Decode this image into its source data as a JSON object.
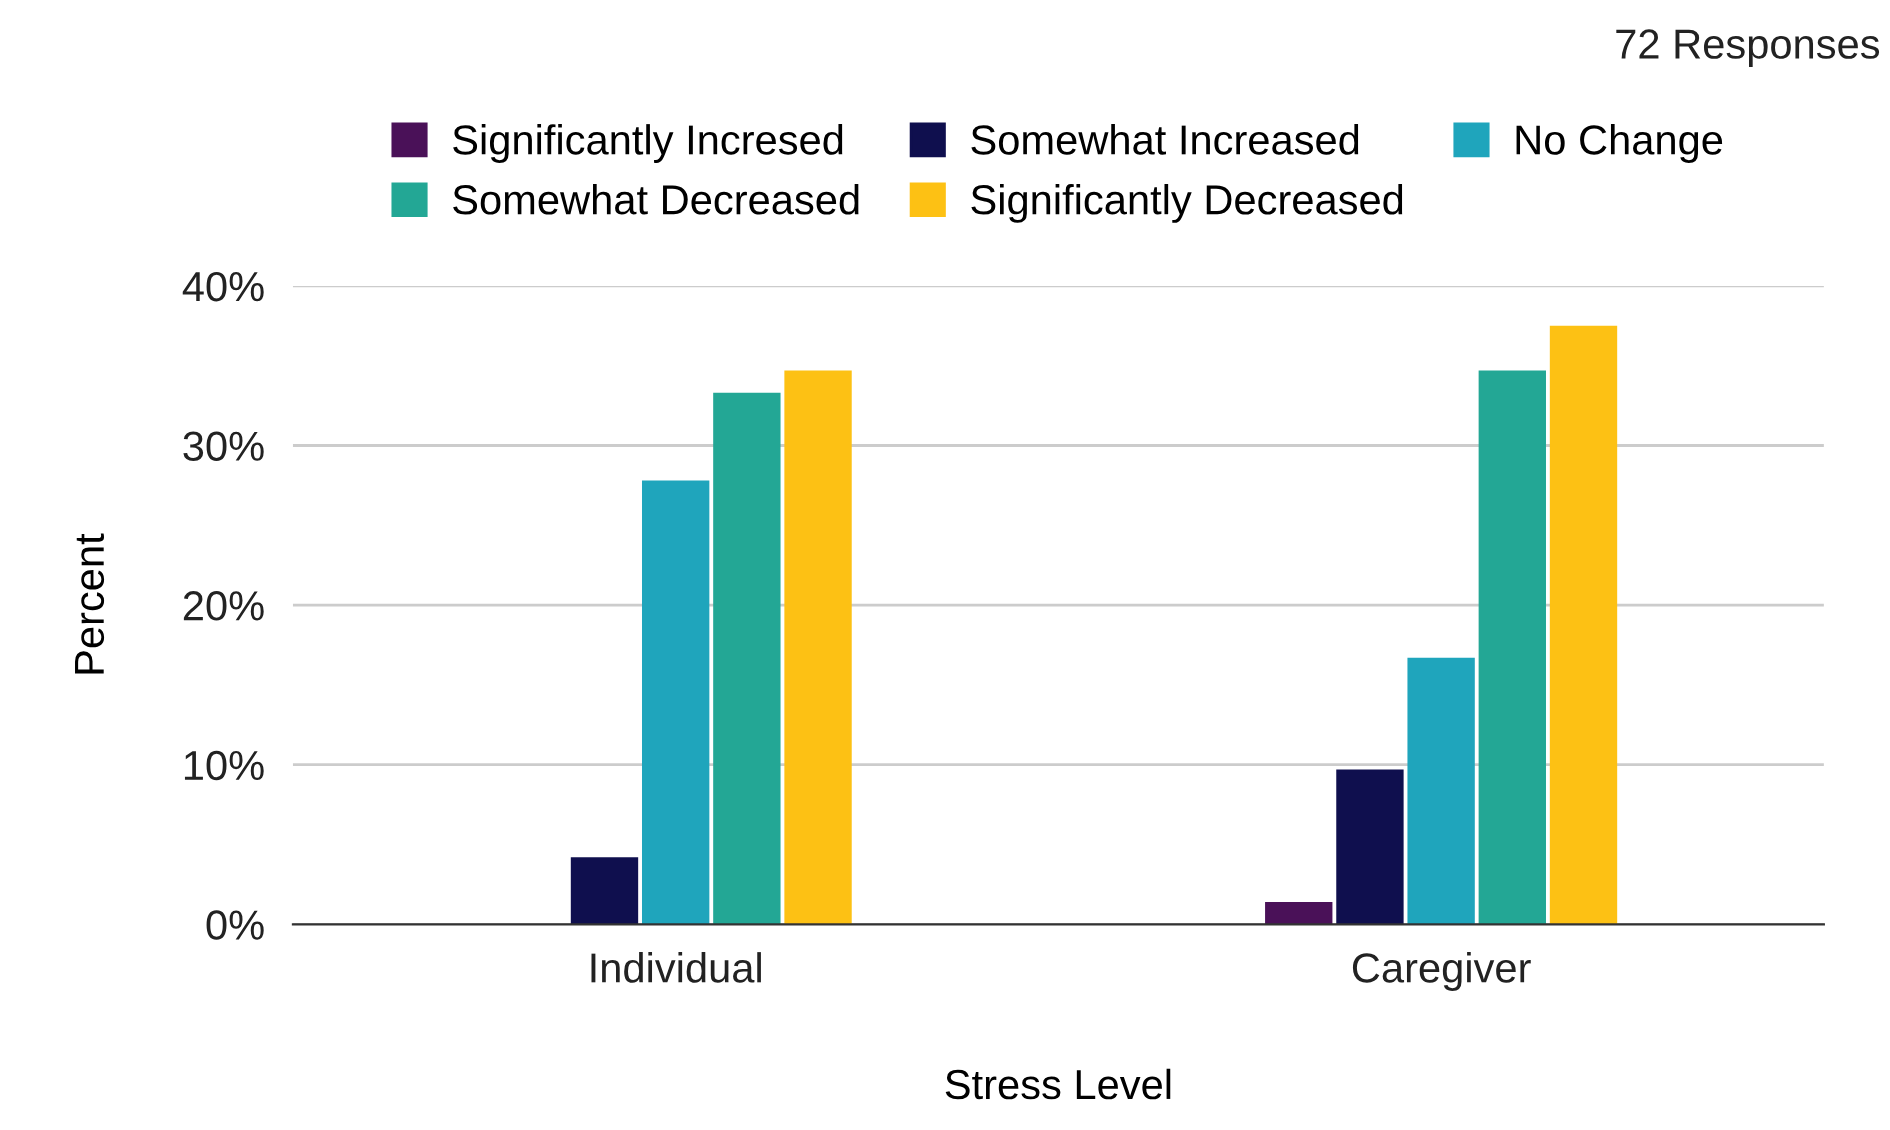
{
  "chart_data": {
    "type": "bar",
    "xlabel": "Stress Level",
    "ylabel": "Percent",
    "annotations": [
      "72 Responses"
    ],
    "categories": [
      "Individual",
      "Caregiver"
    ],
    "series": [
      {
        "name": "Significantly Incresed",
        "color": "#4a1158",
        "values": [
          0,
          1.4
        ]
      },
      {
        "name": "Somewhat Increased",
        "color": "#0f0f4e",
        "values": [
          4.2,
          9.7
        ]
      },
      {
        "name": "No Change",
        "color": "#1fa5bc",
        "values": [
          27.8,
          16.7
        ]
      },
      {
        "name": "Somewhat Decreased",
        "color": "#23a795",
        "values": [
          33.3,
          34.7
        ]
      },
      {
        "name": "Significantly Decreased",
        "color": "#fdc114",
        "values": [
          34.7,
          37.5
        ]
      }
    ],
    "ylim": [
      0,
      40
    ],
    "yticks": [
      {
        "value": 0,
        "label": "0%"
      },
      {
        "value": 10,
        "label": "10%"
      },
      {
        "value": 20,
        "label": "20%"
      },
      {
        "value": 30,
        "label": "30%"
      },
      {
        "value": 40,
        "label": "40%"
      }
    ],
    "grid": "y",
    "legend": "top"
  }
}
